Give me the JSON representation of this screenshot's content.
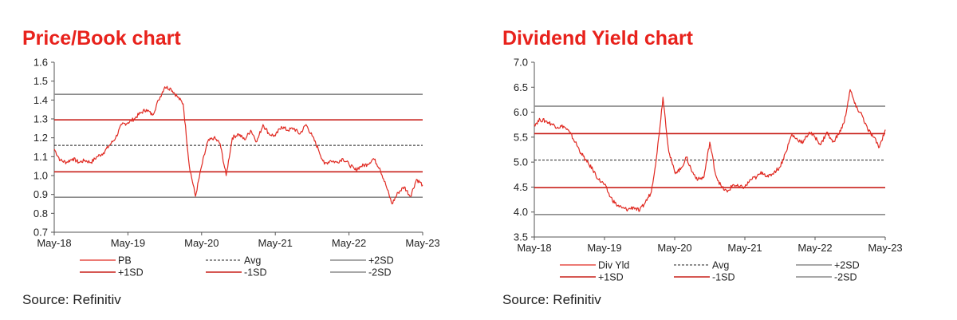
{
  "charts": [
    {
      "title": "Price/Book chart",
      "source": "Source: Refinitiv",
      "chart_data": {
        "type": "line",
        "title": "Price/Book chart",
        "xlabel": "",
        "ylabel": "",
        "x_ticks": [
          "May-18",
          "May-19",
          "May-20",
          "May-21",
          "May-22",
          "May-23"
        ],
        "y_ticks": [
          "0.7",
          "0.8",
          "0.9",
          "1.0",
          "1.1",
          "1.2",
          "1.3",
          "1.4",
          "1.5",
          "1.6"
        ],
        "ylim": [
          0.7,
          1.6
        ],
        "xlim": [
          "2018-05",
          "2023-05"
        ],
        "grid": false,
        "legend": "bottom",
        "series": [
          {
            "name": "PB",
            "x": [
              "2018-05",
              "2018-06",
              "2018-07",
              "2018-08",
              "2018-09",
              "2018-10",
              "2018-11",
              "2018-12",
              "2019-01",
              "2019-02",
              "2019-03",
              "2019-04",
              "2019-05",
              "2019-06",
              "2019-07",
              "2019-08",
              "2019-09",
              "2019-10",
              "2019-11",
              "2019-12",
              "2020-01",
              "2020-02",
              "2020-03",
              "2020-04",
              "2020-05",
              "2020-06",
              "2020-07",
              "2020-08",
              "2020-09",
              "2020-10",
              "2020-11",
              "2020-12",
              "2021-01",
              "2021-02",
              "2021-03",
              "2021-04",
              "2021-05",
              "2021-06",
              "2021-07",
              "2021-08",
              "2021-09",
              "2021-10",
              "2021-11",
              "2021-12",
              "2022-01",
              "2022-02",
              "2022-03",
              "2022-04",
              "2022-05",
              "2022-06",
              "2022-07",
              "2022-08",
              "2022-09",
              "2022-10",
              "2022-11",
              "2022-12",
              "2023-01",
              "2023-02",
              "2023-03",
              "2023-04",
              "2023-05"
            ],
            "values": [
              1.14,
              1.08,
              1.07,
              1.09,
              1.07,
              1.08,
              1.07,
              1.1,
              1.12,
              1.16,
              1.2,
              1.27,
              1.28,
              1.3,
              1.33,
              1.35,
              1.32,
              1.4,
              1.47,
              1.46,
              1.42,
              1.38,
              1.05,
              0.89,
              1.05,
              1.18,
              1.2,
              1.17,
              1.0,
              1.2,
              1.22,
              1.19,
              1.24,
              1.18,
              1.27,
              1.22,
              1.21,
              1.26,
              1.24,
              1.25,
              1.22,
              1.27,
              1.21,
              1.14,
              1.06,
              1.08,
              1.07,
              1.09,
              1.06,
              1.03,
              1.05,
              1.06,
              1.09,
              1.04,
              0.95,
              0.85,
              0.91,
              0.94,
              0.89,
              0.98,
              0.95
            ],
            "color": "#e02a22"
          }
        ],
        "reference_lines": [
          {
            "name": "Avg",
            "value": 1.16,
            "color": "#222222",
            "style": "dashed"
          },
          {
            "name": "+2SD",
            "value": 1.43,
            "color": "#8c8c8c",
            "style": "solid"
          },
          {
            "name": "+1SD",
            "value": 1.295,
            "color": "#c8201a",
            "style": "solid"
          },
          {
            "name": "-1SD",
            "value": 1.02,
            "color": "#c8201a",
            "style": "solid"
          },
          {
            "name": "-2SD",
            "value": 0.885,
            "color": "#8c8c8c",
            "style": "solid"
          }
        ]
      }
    },
    {
      "title": "Dividend Yield chart",
      "source": "Source: Refinitiv",
      "chart_data": {
        "type": "line",
        "title": "Dividend Yield chart",
        "xlabel": "",
        "ylabel": "",
        "x_ticks": [
          "May-18",
          "May-19",
          "May-20",
          "May-21",
          "May-22",
          "May-23"
        ],
        "y_ticks": [
          "3.5",
          "4.0",
          "4.5",
          "5.0",
          "5.5",
          "6.0",
          "6.5",
          "7.0"
        ],
        "ylim": [
          3.5,
          7.0
        ],
        "xlim": [
          "2018-05",
          "2023-05"
        ],
        "grid": false,
        "legend": "bottom",
        "series": [
          {
            "name": "Div Yld",
            "x": [
              "2018-05",
              "2018-06",
              "2018-07",
              "2018-08",
              "2018-09",
              "2018-10",
              "2018-11",
              "2018-12",
              "2019-01",
              "2019-02",
              "2019-03",
              "2019-04",
              "2019-05",
              "2019-06",
              "2019-07",
              "2019-08",
              "2019-09",
              "2019-10",
              "2019-11",
              "2019-12",
              "2020-01",
              "2020-02",
              "2020-03",
              "2020-04",
              "2020-05",
              "2020-06",
              "2020-07",
              "2020-08",
              "2020-09",
              "2020-10",
              "2020-11",
              "2020-12",
              "2021-01",
              "2021-02",
              "2021-03",
              "2021-04",
              "2021-05",
              "2021-06",
              "2021-07",
              "2021-08",
              "2021-09",
              "2021-10",
              "2021-11",
              "2021-12",
              "2022-01",
              "2022-02",
              "2022-03",
              "2022-04",
              "2022-05",
              "2022-06",
              "2022-07",
              "2022-08",
              "2022-09",
              "2022-10",
              "2022-11",
              "2022-12",
              "2023-01",
              "2023-02",
              "2023-03",
              "2023-04",
              "2023-05"
            ],
            "values": [
              5.75,
              5.85,
              5.82,
              5.76,
              5.7,
              5.72,
              5.6,
              5.4,
              5.18,
              5.0,
              4.85,
              4.65,
              4.55,
              4.3,
              4.15,
              4.08,
              4.05,
              4.1,
              4.02,
              4.2,
              4.4,
              5.2,
              6.3,
              5.2,
              4.8,
              4.85,
              5.1,
              4.8,
              4.65,
              4.7,
              5.4,
              4.75,
              4.5,
              4.4,
              4.55,
              4.5,
              4.5,
              4.65,
              4.7,
              4.8,
              4.7,
              4.8,
              4.9,
              5.2,
              5.55,
              5.45,
              5.4,
              5.6,
              5.5,
              5.35,
              5.6,
              5.4,
              5.55,
              5.8,
              6.45,
              6.1,
              5.95,
              5.65,
              5.5,
              5.3,
              5.65
            ],
            "color": "#e02a22"
          }
        ],
        "reference_lines": [
          {
            "name": "Avg",
            "value": 5.04,
            "color": "#222222",
            "style": "dashed"
          },
          {
            "name": "+2SD",
            "value": 6.12,
            "color": "#8c8c8c",
            "style": "solid"
          },
          {
            "name": "+1SD",
            "value": 5.57,
            "color": "#c8201a",
            "style": "solid"
          },
          {
            "name": "-1SD",
            "value": 4.49,
            "color": "#c8201a",
            "style": "solid"
          },
          {
            "name": "-2SD",
            "value": 3.95,
            "color": "#8c8c8c",
            "style": "solid"
          }
        ]
      }
    }
  ]
}
